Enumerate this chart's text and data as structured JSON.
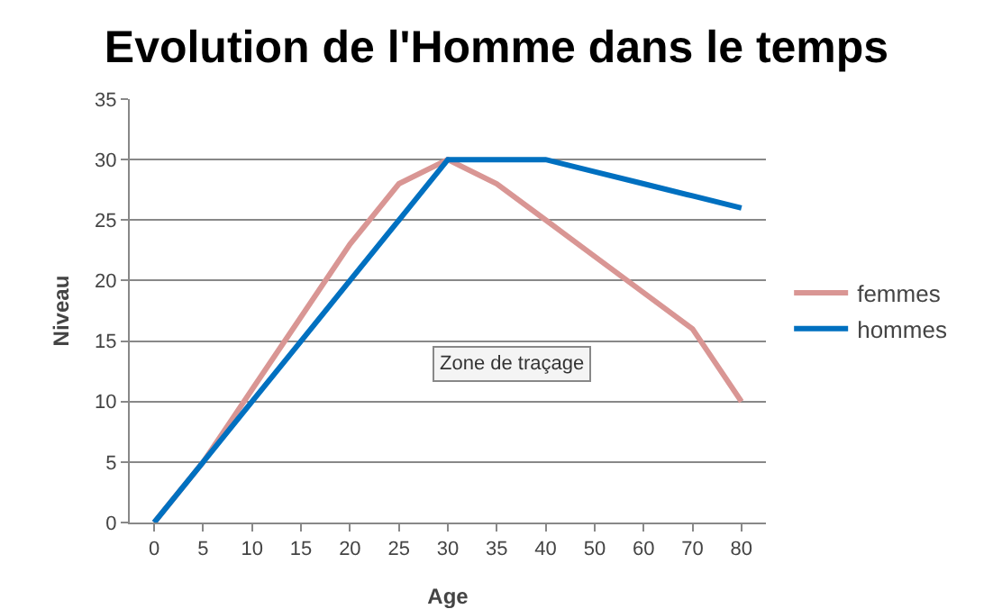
{
  "chart_data": {
    "type": "line",
    "title": "Evolution de l'Homme dans le temps",
    "xlabel": "Age",
    "ylabel": "Niveau",
    "categories": [
      "0",
      "5",
      "10",
      "15",
      "20",
      "25",
      "30",
      "35",
      "40",
      "50",
      "60",
      "70",
      "80"
    ],
    "series": [
      {
        "name": "femmes",
        "color": "#d99694",
        "values": [
          0,
          5,
          11,
          17,
          23,
          28,
          30,
          28,
          25,
          22,
          19,
          16,
          10
        ]
      },
      {
        "name": "hommes",
        "color": "#0070c0",
        "values": [
          0,
          5,
          10,
          15,
          20,
          25,
          30,
          30,
          30,
          29,
          28,
          27,
          26
        ]
      }
    ],
    "ylim": [
      0,
      35
    ],
    "yticks": [
      0,
      5,
      10,
      15,
      20,
      25,
      30,
      35
    ],
    "grid": "y",
    "legend": "right",
    "marker": "none",
    "line_style": "solid",
    "annotations": [
      "Zone de traçage"
    ]
  }
}
